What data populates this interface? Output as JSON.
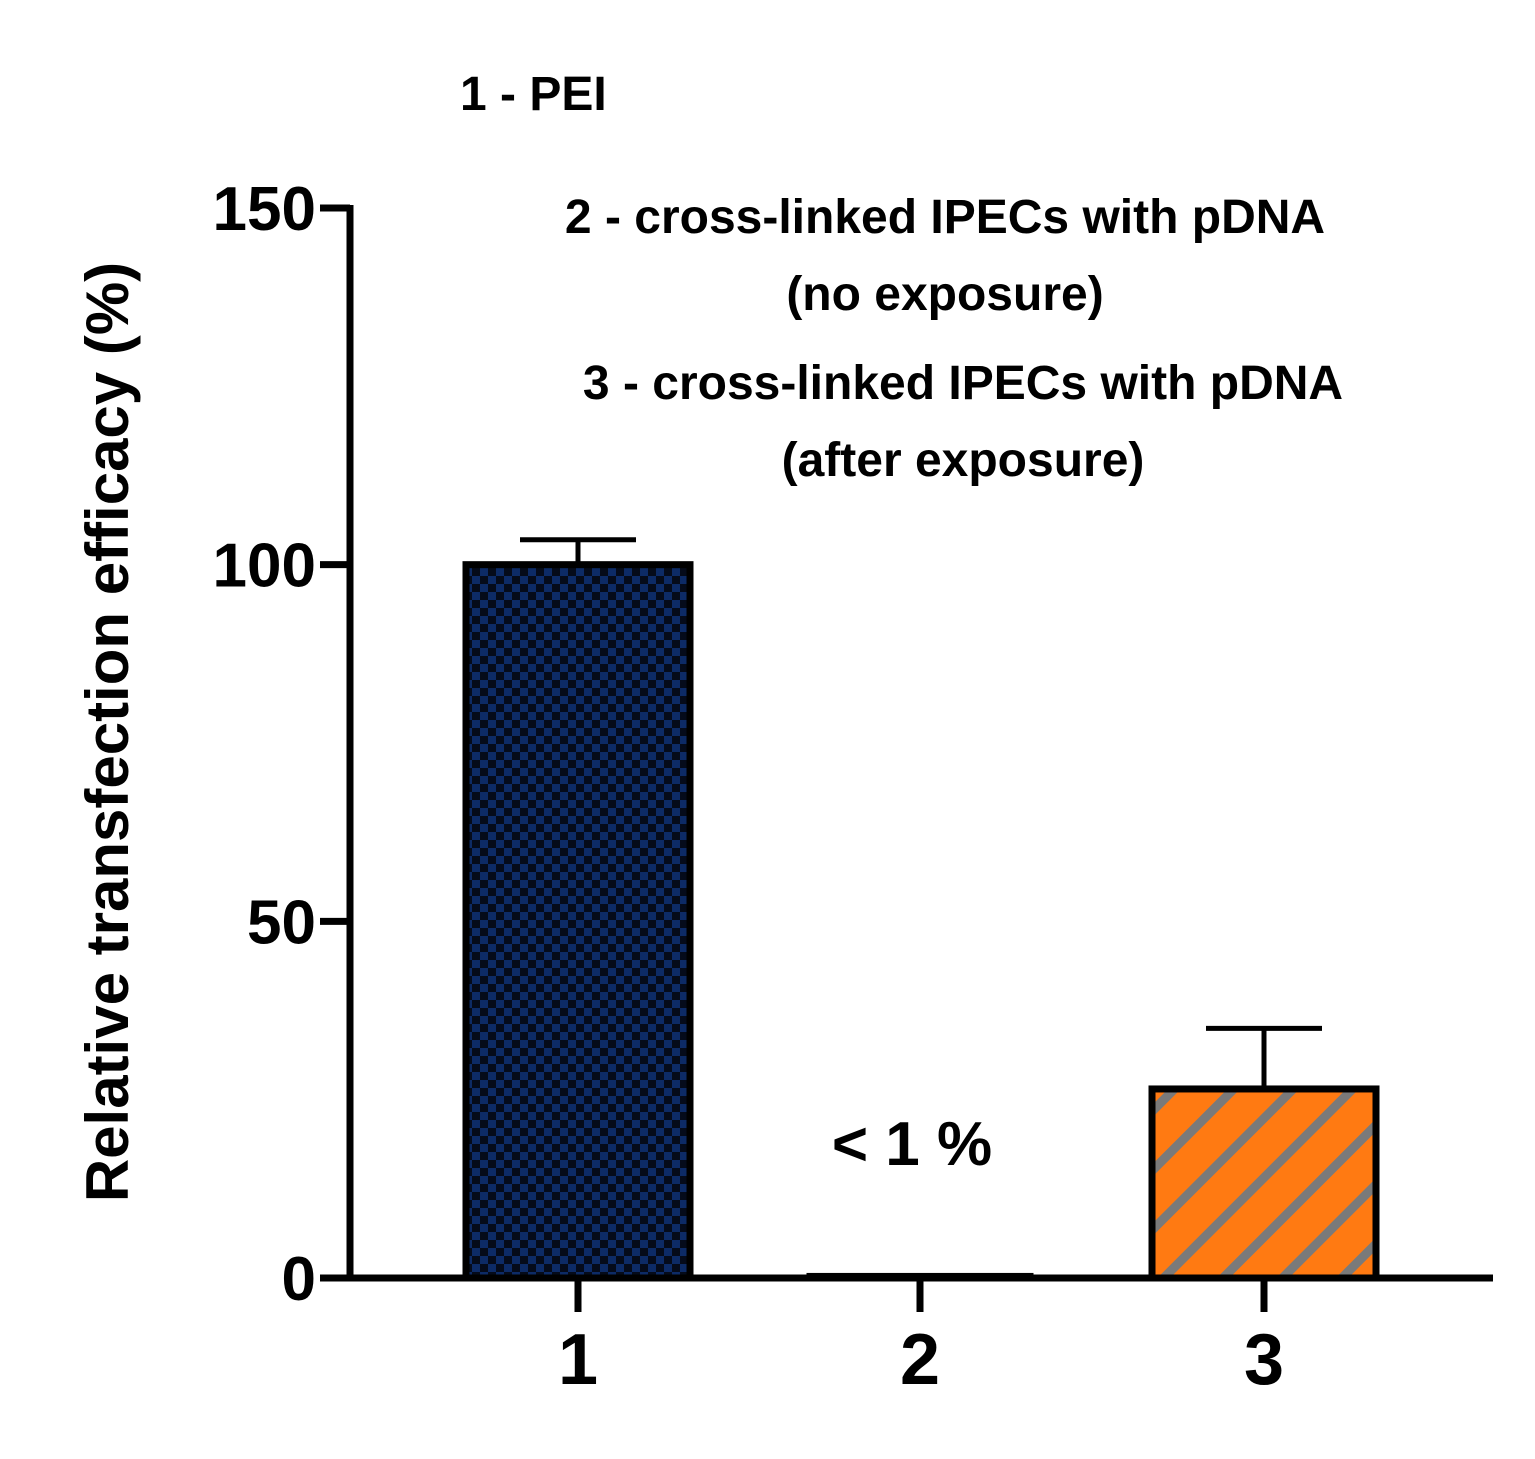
{
  "chart_data": {
    "type": "bar",
    "title": "",
    "xlabel": "",
    "ylabel": "Relative transfection efficacy (%)",
    "ylim": [
      0,
      150
    ],
    "yticks": [
      "0",
      "50",
      "100",
      "150"
    ],
    "categories": [
      "1",
      "2",
      "3"
    ],
    "values": [
      100,
      0.5,
      26.5
    ],
    "errors": [
      3.5,
      0,
      8.5
    ],
    "bar_fills": [
      "checker",
      "solid",
      "diagonal-stripes"
    ],
    "colors": {
      "bar1": "#0d2b66",
      "bar1_alt": "#050b1a",
      "bar3": "#ff7a12",
      "bar3_stripe": "#7a7a7a",
      "axis": "#000000"
    },
    "legend": [
      "1 - PEI",
      "2 - cross-linked IPECs with pDNA",
      "(no exposure)",
      "3 - cross-linked IPECs with pDNA",
      "(after exposure)"
    ],
    "annotations": [
      "< 1 %"
    ]
  }
}
